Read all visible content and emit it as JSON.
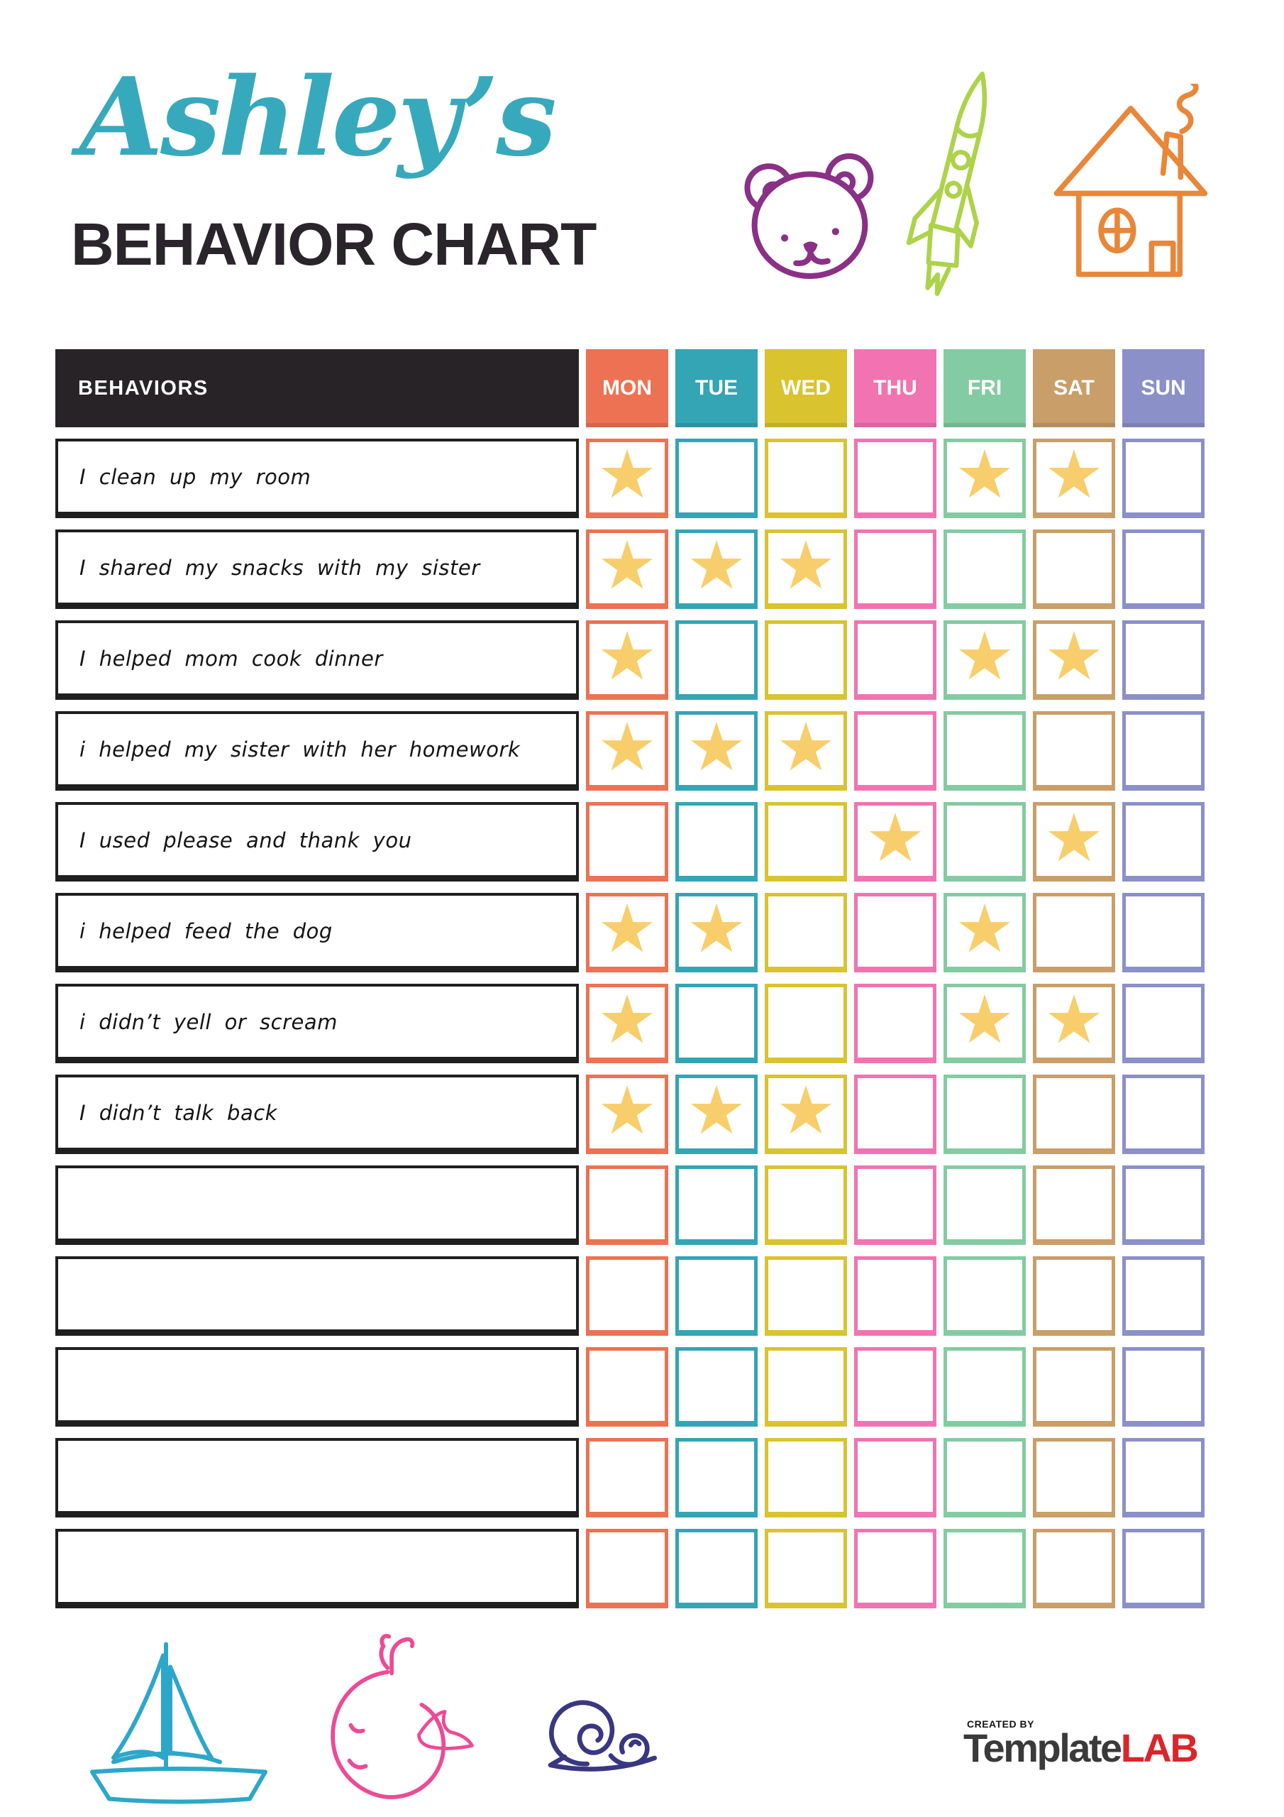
{
  "title": {
    "script": "Ashley’s",
    "main": "BEHAVIOR CHART"
  },
  "colors": {
    "accent_teal": "#37A9BC",
    "star": "#F7CE6B",
    "logo_red": "#D9262B",
    "header_bg": "#272326",
    "bear_purple": "#8A3087",
    "rocket_green": "#ACD34A",
    "house_orange": "#E8873A",
    "boat_teal": "#2CA7C9",
    "whale_pink": "#EC4B95",
    "snail_navy": "#393782"
  },
  "table": {
    "behaviors_header": "BEHAVIORS",
    "days": [
      {
        "label": "MON",
        "color": "#EC7253"
      },
      {
        "label": "TUE",
        "color": "#33A5B5"
      },
      {
        "label": "WED",
        "color": "#D9C32F"
      },
      {
        "label": "THU",
        "color": "#F173B2"
      },
      {
        "label": "FRI",
        "color": "#83CBA2"
      },
      {
        "label": "SAT",
        "color": "#C99E68"
      },
      {
        "label": "SUN",
        "color": "#8B90C9"
      }
    ],
    "star_symbol": "★",
    "rows": [
      {
        "label": "I clean up my room",
        "stars": [
          "MON",
          "FRI",
          "SAT"
        ]
      },
      {
        "label": "I shared my snacks with my sister",
        "stars": [
          "MON",
          "TUE",
          "WED"
        ]
      },
      {
        "label": "I helped mom cook dinner",
        "stars": [
          "MON",
          "FRI",
          "SAT"
        ]
      },
      {
        "label": "i helped my sister with her homework",
        "stars": [
          "MON",
          "TUE",
          "WED"
        ]
      },
      {
        "label": "I used please and thank you",
        "stars": [
          "THU",
          "SAT"
        ]
      },
      {
        "label": "i helped feed the dog",
        "stars": [
          "MON",
          "TUE",
          "FRI"
        ]
      },
      {
        "label": "i didn’t yell or scream",
        "stars": [
          "MON",
          "FRI",
          "SAT"
        ]
      },
      {
        "label": "I didn’t talk back",
        "stars": [
          "MON",
          "TUE",
          "WED"
        ]
      },
      {
        "label": "",
        "stars": []
      },
      {
        "label": "",
        "stars": []
      },
      {
        "label": "",
        "stars": []
      },
      {
        "label": "",
        "stars": []
      },
      {
        "label": "",
        "stars": []
      }
    ]
  },
  "footer": {
    "created_by": "CREATED BY",
    "brand_primary": "Template",
    "brand_accent": "LAB"
  }
}
